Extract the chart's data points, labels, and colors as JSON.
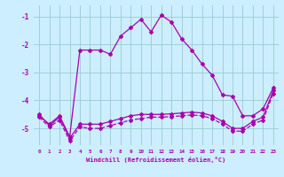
{
  "background_color": "#cceeff",
  "grid_color": "#99cccc",
  "line_color": "#aa00aa",
  "xlim": [
    -0.5,
    23.5
  ],
  "ylim": [
    -5.6,
    -0.6
  ],
  "yticks": [
    -5,
    -4,
    -3,
    -2,
    -1
  ],
  "xticks": [
    0,
    1,
    2,
    3,
    4,
    5,
    6,
    7,
    8,
    9,
    10,
    11,
    12,
    13,
    14,
    15,
    16,
    17,
    18,
    19,
    20,
    21,
    22,
    23
  ],
  "xlabel": "Windchill (Refroidissement éolien,°C)",
  "line1_x": [
    0,
    1,
    2,
    3,
    4,
    5,
    6,
    7,
    8,
    9,
    10,
    11,
    12,
    13,
    14,
    15,
    16,
    17,
    18,
    19,
    20,
    21,
    22,
    23
  ],
  "line1_y": [
    -4.5,
    -4.9,
    -4.6,
    -5.35,
    -4.85,
    -4.85,
    -4.85,
    -4.75,
    -4.65,
    -4.55,
    -4.5,
    -4.5,
    -4.5,
    -4.48,
    -4.45,
    -4.42,
    -4.45,
    -4.55,
    -4.75,
    -5.0,
    -5.0,
    -4.75,
    -4.6,
    -3.65
  ],
  "line2_x": [
    0,
    1,
    2,
    3,
    4,
    5,
    6,
    7,
    8,
    9,
    10,
    11,
    12,
    13,
    14,
    15,
    16,
    17,
    18,
    19,
    20,
    21,
    22,
    23
  ],
  "line2_y": [
    -4.6,
    -4.95,
    -4.7,
    -5.45,
    -4.95,
    -5.0,
    -5.0,
    -4.9,
    -4.8,
    -4.7,
    -4.65,
    -4.6,
    -4.6,
    -4.58,
    -4.55,
    -4.52,
    -4.55,
    -4.65,
    -4.85,
    -5.1,
    -5.1,
    -4.85,
    -4.7,
    -3.75
  ],
  "line3_x": [
    0,
    1,
    2,
    3,
    4,
    5,
    6,
    7,
    8,
    9,
    10,
    11,
    12,
    13,
    14,
    15,
    16,
    17,
    18,
    19,
    20,
    21,
    22,
    23
  ],
  "line3_y": [
    -4.55,
    -4.85,
    -4.55,
    -5.3,
    -2.2,
    -2.2,
    -2.2,
    -2.35,
    -1.7,
    -1.4,
    -1.1,
    -1.55,
    -0.95,
    -1.2,
    -1.8,
    -2.2,
    -2.7,
    -3.1,
    -3.8,
    -3.85,
    -4.55,
    -4.55,
    -4.3,
    -3.55
  ],
  "marker": "D",
  "markersize": 2.0,
  "linewidth": 0.9,
  "figwidth": 3.2,
  "figheight": 2.0,
  "dpi": 100
}
